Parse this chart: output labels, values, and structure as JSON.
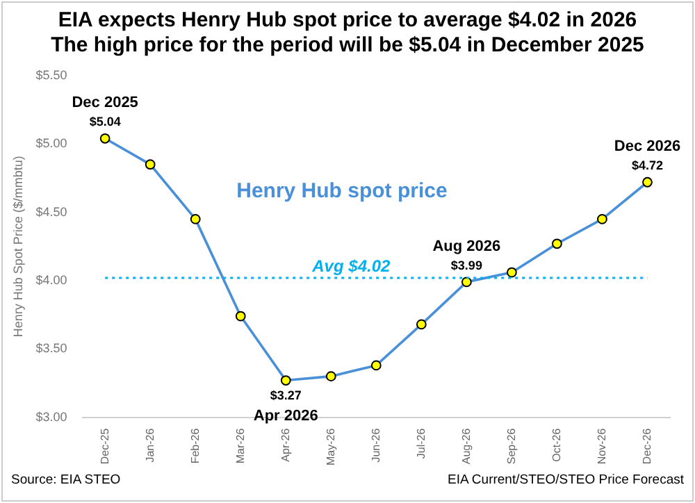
{
  "chart_data": {
    "type": "line",
    "title": "EIA expects Henry Hub spot price to average  $4.02 in 2026",
    "subtitle": "The high price for the period will be $5.04 in December 2025",
    "ylabel": "Henry Hub Spot Price ($/mmbtu)",
    "categories": [
      "Dec-25",
      "Jan-26",
      "Feb-26",
      "Mar-26",
      "Apr-26",
      "May-26",
      "Jun-26",
      "Jul-26",
      "Aug-26",
      "Sep-26",
      "Oct-26",
      "Nov-26",
      "Dec-26"
    ],
    "series": [
      {
        "name": "Henry Hub spot price",
        "color": "#4a90d9",
        "values": [
          5.04,
          4.85,
          4.45,
          3.74,
          3.27,
          3.3,
          3.38,
          3.68,
          3.99,
          4.06,
          4.27,
          4.45,
          4.72
        ],
        "value_labels": [
          "$5.04",
          null,
          null,
          null,
          "$3.27",
          null,
          null,
          null,
          "$3.99",
          null,
          null,
          null,
          "$4.72"
        ]
      }
    ],
    "marker": "circle",
    "line_style": "solid",
    "legend": false,
    "grid": false,
    "ylim": [
      3.0,
      5.5
    ],
    "yticks": [
      {
        "value": 3.0,
        "label": "$3.00"
      },
      {
        "value": 3.5,
        "label": "$3.50"
      },
      {
        "value": 4.0,
        "label": "$4.00"
      },
      {
        "value": 4.5,
        "label": "$4.50"
      },
      {
        "value": 5.0,
        "label": "$5.00"
      },
      {
        "value": 5.5,
        "label": "$5.50"
      }
    ],
    "ref_lines": [
      {
        "axis": "y",
        "value": 4.02,
        "label": "Avg $4.02",
        "color": "#00b0f0",
        "line_style": "dotted"
      }
    ],
    "annotations": [
      {
        "text": "Dec 2025",
        "x": "Dec-25",
        "y": 5.04
      },
      {
        "text": "Apr 2026",
        "x": "Apr-26",
        "y": 3.27
      },
      {
        "text": "Aug 2026",
        "x": "Aug-26",
        "y": 3.99
      },
      {
        "text": "Dec 2026",
        "x": "Dec-26",
        "y": 4.72
      },
      "Source: EIA STEO",
      "EIA Current/STEO/STEO Price Forecast"
    ]
  }
}
